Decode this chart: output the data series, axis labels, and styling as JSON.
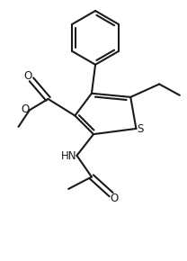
{
  "bg_color": "#ffffff",
  "line_color": "#1a1a1a",
  "lw": 1.5,
  "figsize": [
    2.08,
    2.9
  ],
  "dpi": 100,
  "xlim": [
    0.0,
    10.0
  ],
  "ylim": [
    0.0,
    14.0
  ]
}
